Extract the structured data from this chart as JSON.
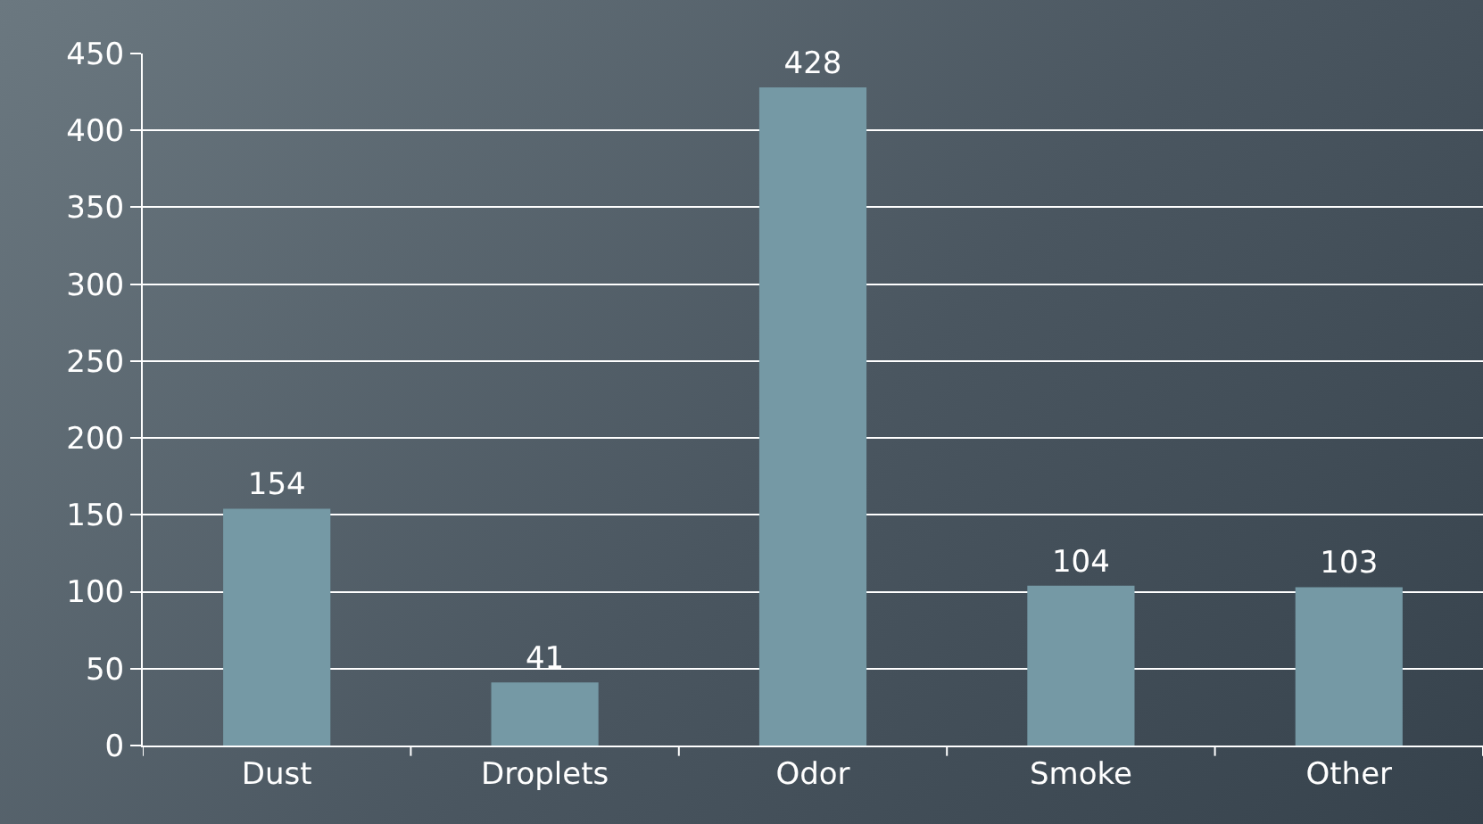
{
  "chart_data": {
    "type": "bar",
    "categories": [
      "Dust",
      "Droplets",
      "Odor",
      "Smoke",
      "Other"
    ],
    "values": [
      154,
      41,
      428,
      104,
      103
    ],
    "color": "#7599a5",
    "ylim": [
      0,
      450
    ],
    "yticks": [
      0,
      50,
      100,
      150,
      200,
      250,
      300,
      350,
      400,
      450
    ],
    "grid": "y",
    "data_labels": true
  }
}
